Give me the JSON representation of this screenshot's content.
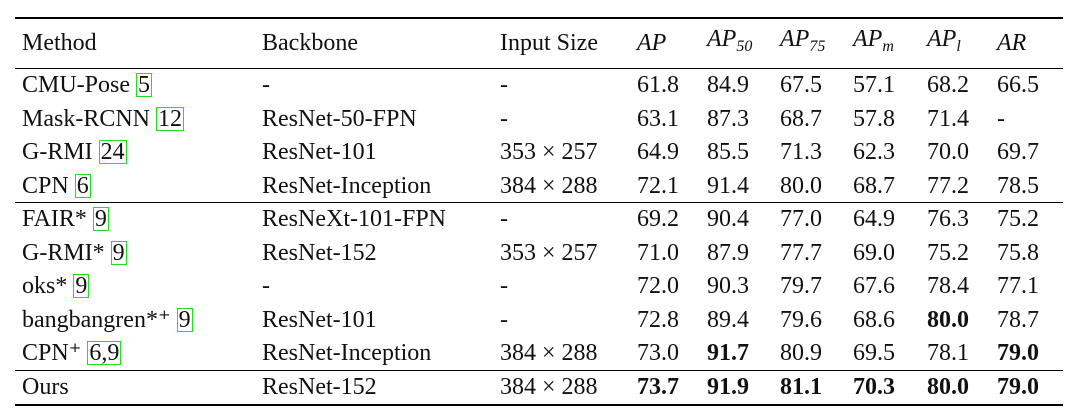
{
  "table": {
    "header": [
      {
        "text": "Method"
      },
      {
        "text": "Backbone"
      },
      {
        "text": "Input Size"
      },
      {
        "text": "AP"
      },
      {
        "text": "AP",
        "sub": "50"
      },
      {
        "text": "AP",
        "sub": "75"
      },
      {
        "text": "AP",
        "sub": "m"
      },
      {
        "text": "AP",
        "sub": "l"
      },
      {
        "text": "AR"
      }
    ],
    "groups": [
      {
        "rows": [
          {
            "method": "CMU-Pose",
            "cite": "5",
            "backbone": "-",
            "input": "-",
            "values": [
              "61.8",
              "84.9",
              "67.5",
              "57.1",
              "68.2",
              "66.5"
            ],
            "bold": []
          },
          {
            "method": "Mask-RCNN",
            "cite": "12",
            "backbone": "ResNet-50-FPN",
            "input": "-",
            "values": [
              "63.1",
              "87.3",
              "68.7",
              "57.8",
              "71.4",
              "-"
            ],
            "bold": []
          },
          {
            "method": "G-RMI",
            "cite": "24",
            "backbone": "ResNet-101",
            "input": "353 × 257",
            "values": [
              "64.9",
              "85.5",
              "71.3",
              "62.3",
              "70.0",
              "69.7"
            ],
            "bold": []
          },
          {
            "method": "CPN",
            "cite": "6",
            "backbone": "ResNet-Inception",
            "input": "384 × 288",
            "values": [
              "72.1",
              "91.4",
              "80.0",
              "68.7",
              "77.2",
              "78.5"
            ],
            "bold": []
          }
        ]
      },
      {
        "rows": [
          {
            "method": "FAIR*",
            "cite": "9",
            "backbone": "ResNeXt-101-FPN",
            "input": "-",
            "values": [
              "69.2",
              "90.4",
              "77.0",
              "64.9",
              "76.3",
              "75.2"
            ],
            "bold": []
          },
          {
            "method": "G-RMI*",
            "cite": "9",
            "backbone": "ResNet-152",
            "input": "353 × 257",
            "values": [
              "71.0",
              "87.9",
              "77.7",
              "69.0",
              "75.2",
              "75.8"
            ],
            "bold": []
          },
          {
            "method": "oks*",
            "cite": "9",
            "backbone": "-",
            "input": "-",
            "values": [
              "72.0",
              "90.3",
              "79.7",
              "67.6",
              "78.4",
              "77.1"
            ],
            "bold": []
          },
          {
            "method": "bangbangren*⁺",
            "cite": "9",
            "backbone": "ResNet-101",
            "input": "-",
            "values": [
              "72.8",
              "89.4",
              "79.6",
              "68.6",
              "80.0",
              "78.7"
            ],
            "bold": [
              4
            ]
          },
          {
            "method": "CPN⁺",
            "cite": "6,9",
            "backbone": "ResNet-Inception",
            "input": "384 × 288",
            "values": [
              "73.0",
              "91.7",
              "80.9",
              "69.5",
              "78.1",
              "79.0"
            ],
            "bold": [
              1,
              5
            ]
          }
        ]
      },
      {
        "rows": [
          {
            "method": "Ours",
            "cite": null,
            "backbone": "ResNet-152",
            "input": "384 × 288",
            "values": [
              "73.7",
              "91.9",
              "81.1",
              "70.3",
              "80.0",
              "79.0"
            ],
            "bold": [
              0,
              1,
              2,
              3,
              4,
              5
            ]
          }
        ]
      }
    ]
  }
}
